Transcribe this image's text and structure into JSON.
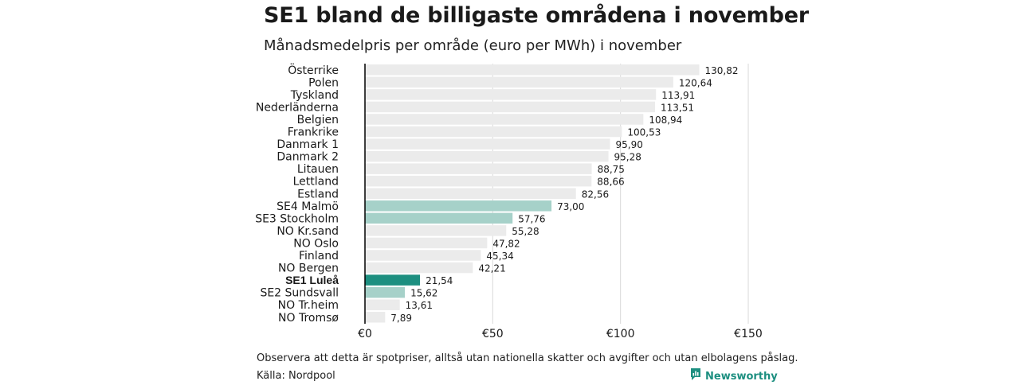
{
  "header": {
    "title": "SE1 bland de billigaste områdena i november",
    "subtitle": "Månadsmedelpris per område (euro per MWh) i november"
  },
  "footer": {
    "note": "Observera att detta är spotpriser, alltså utan nationella skatter och avgifter och utan elbolagens påslag.",
    "source": "Källa: Nordpool",
    "brand": "Newsworthy",
    "brand_icon": "newsworthy-logo-icon"
  },
  "colors": {
    "default": "#ebebeb",
    "swedish": "#a6d1c9",
    "highlight": "#1d8f80",
    "grid": "#d9d9d9",
    "axis": "#000000"
  },
  "chart_data": {
    "type": "bar",
    "orientation": "horizontal",
    "title": "SE1 bland de billigaste områdena i november",
    "subtitle": "Månadsmedelpris per område (euro per MWh) i november",
    "xlim": [
      0,
      150
    ],
    "x_ticks": [
      0,
      50,
      100,
      150
    ],
    "x_tick_labels": [
      "€0",
      "€50",
      "€100",
      "€150"
    ],
    "grid": true,
    "categories": [
      "Österrike",
      "Polen",
      "Tyskland",
      "Nederländerna",
      "Belgien",
      "Frankrike",
      "Danmark  1",
      "Danmark  2",
      "Litauen",
      "Lettland",
      "Estland",
      "SE4  Malmö",
      "SE3  Stockholm",
      "NO Kr.sand",
      "NO Oslo",
      "Finland",
      "NO Bergen",
      "SE1 Luleå",
      "SE2  Sundsvall",
      "NO Tr.heim",
      "NO Tromsø"
    ],
    "values": [
      130.82,
      120.64,
      113.91,
      113.51,
      108.94,
      100.53,
      95.9,
      95.28,
      88.75,
      88.66,
      82.56,
      73.0,
      57.76,
      55.28,
      47.82,
      45.34,
      42.21,
      21.54,
      15.62,
      13.61,
      7.89
    ],
    "value_labels": [
      "130,82",
      "120,64",
      "113,91",
      "113,51",
      "108,94",
      "100,53",
      "95,90",
      "95,28",
      "88,75",
      "88,66",
      "82,56",
      "73,00",
      "57,76",
      "55,28",
      "47,82",
      "45,34",
      "42,21",
      "21,54",
      "15,62",
      "13,61",
      "7,89"
    ],
    "bar_style": [
      "default",
      "default",
      "default",
      "default",
      "default",
      "default",
      "default",
      "default",
      "default",
      "default",
      "default",
      "swedish",
      "swedish",
      "default",
      "default",
      "default",
      "default",
      "highlight",
      "swedish",
      "default",
      "default"
    ]
  }
}
